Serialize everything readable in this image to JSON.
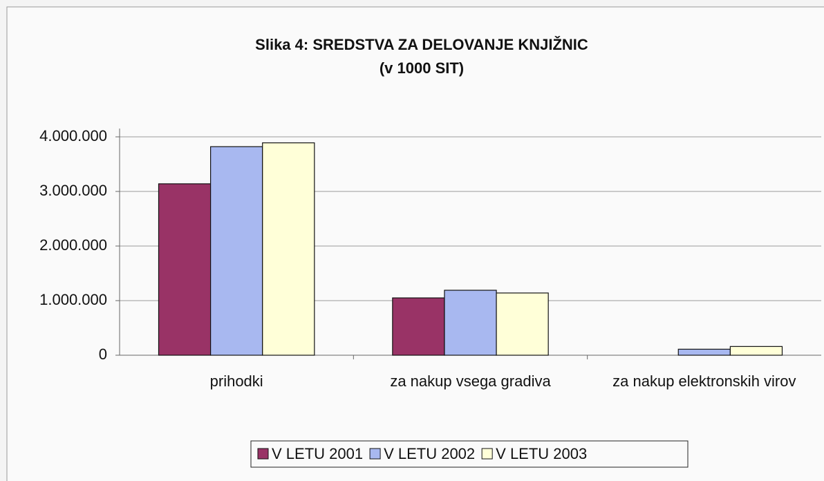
{
  "chart_data": {
    "type": "bar",
    "title": "Slika 4: SREDSTVA ZA DELOVANJE KNJIŽNIC",
    "subtitle": "(v 1000 SIT)",
    "categories": [
      "prihodki",
      "za nakup vsega gradiva",
      "za nakup elektronskih virov"
    ],
    "series": [
      {
        "name": "V LETU 2001",
        "color": "#993366",
        "values": [
          3140000,
          1050000,
          0
        ]
      },
      {
        "name": "V LETU 2002",
        "color": "#a8b8f0",
        "values": [
          3820000,
          1190000,
          110000
        ]
      },
      {
        "name": "V LETU 2003",
        "color": "#ffffd8",
        "values": [
          3890000,
          1140000,
          160000
        ]
      }
    ],
    "ylim": [
      0,
      4000000
    ],
    "yticks": [
      0,
      {
        "value": 1000000,
        "label": "1.000.000"
      },
      {
        "value": 2000000,
        "label": "2.000.000"
      },
      {
        "value": 3000000,
        "label": "3.000.000"
      },
      {
        "value": 4000000,
        "label": "4.000.000"
      }
    ],
    "grid": true,
    "legend": "bottom"
  }
}
